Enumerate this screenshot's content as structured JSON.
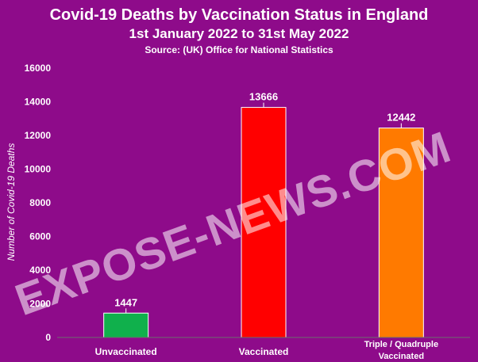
{
  "chart_data": {
    "type": "bar",
    "title": "Covid-19 Deaths by Vaccination Status in England",
    "subtitle": "1st January 2022 to 31st May 2022",
    "source": "Source:  (UK) Office for National Statistics",
    "ylabel": "Number of Covid-19 Deaths",
    "xlabel": "",
    "ylim": [
      0,
      16000
    ],
    "yticks": [
      0,
      2000,
      4000,
      6000,
      8000,
      10000,
      12000,
      14000,
      16000
    ],
    "categories": [
      [
        "Unvaccinated"
      ],
      [
        "Vaccinated"
      ],
      [
        "Triple / Quadruple",
        "Vaccinated"
      ]
    ],
    "values": [
      1447,
      13666,
      12442
    ],
    "data_labels": [
      "1447",
      "13666",
      "12442"
    ],
    "colors": [
      "#10b04c",
      "#ff0000",
      "#ff7a00"
    ],
    "background": "#8e0b8a",
    "grid": false,
    "legend": "none"
  },
  "watermark": "EXPOSE-NEWS.COM"
}
